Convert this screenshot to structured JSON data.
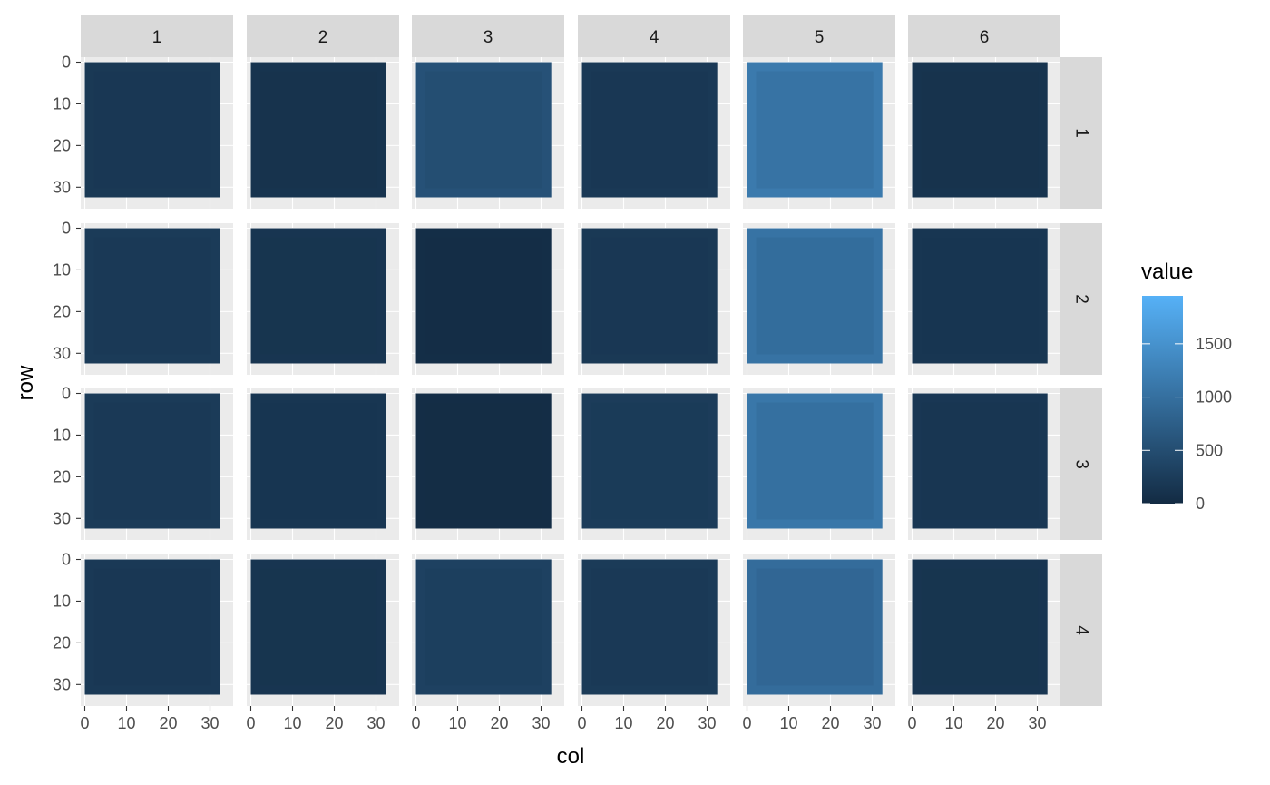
{
  "chart_data": {
    "type": "heatmap",
    "title": "",
    "xlabel": "col",
    "ylabel": "row",
    "column_facets": [
      "1",
      "2",
      "3",
      "4",
      "5",
      "6"
    ],
    "row_facets": [
      "1",
      "2",
      "3",
      "4"
    ],
    "x_ticks": [
      "0",
      "10",
      "20",
      "30"
    ],
    "y_ticks": [
      "0",
      "10",
      "20",
      "30"
    ],
    "xlim": [
      0,
      32
    ],
    "ylim": [
      0,
      32
    ],
    "y_reversed": true,
    "grid": true,
    "legend": {
      "title": "value",
      "position": "right",
      "ticks": [
        "0",
        "500",
        "1000",
        "1500"
      ],
      "tick_values": [
        0,
        500,
        1000,
        1500
      ],
      "range": [
        0,
        1950
      ],
      "low_color": "#132B43",
      "high_color": "#56B1F7"
    },
    "panel_levels": [
      [
        200,
        130,
        560,
        210,
        1150,
        130
      ],
      [
        230,
        150,
        40,
        200,
        1050,
        160
      ],
      [
        230,
        160,
        30,
        250,
        1100,
        180
      ],
      [
        210,
        150,
        320,
        230,
        950,
        150
      ]
    ]
  }
}
